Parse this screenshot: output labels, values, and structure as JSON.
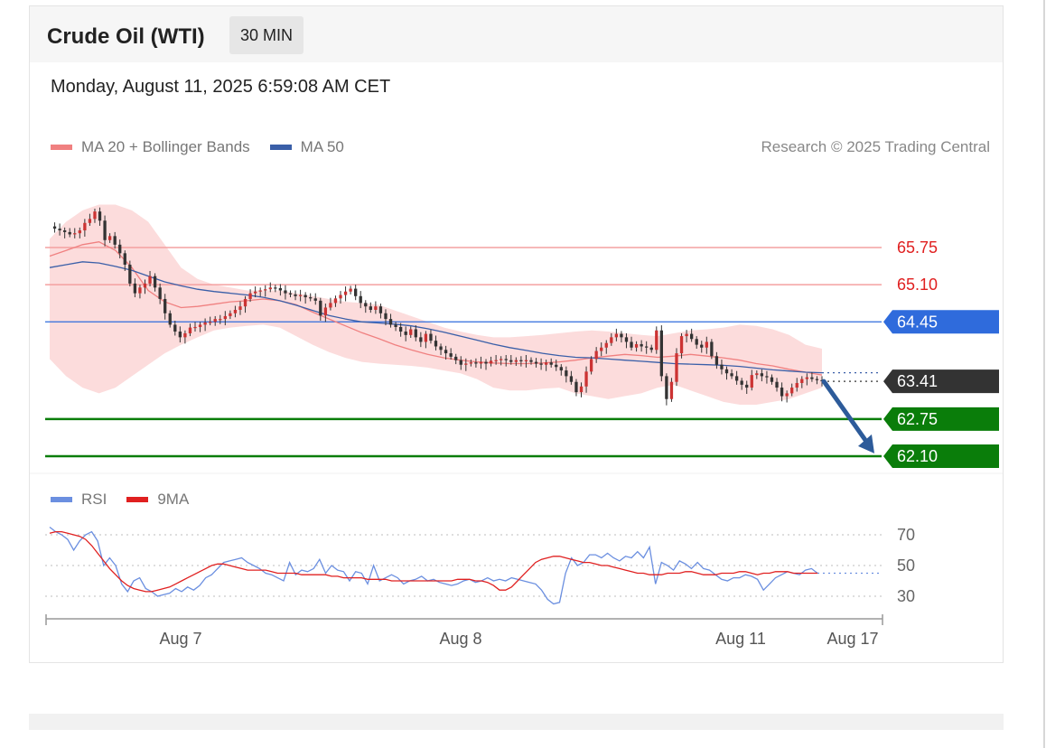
{
  "header": {
    "title": "Crude Oil (WTI)",
    "timeframe": "30 MIN",
    "timestamp": "Monday, August 11, 2025 6:59:08 AM CET"
  },
  "price_legend": {
    "items": [
      {
        "label": "MA 20 + Bollinger Bands",
        "color": "#f08080"
      },
      {
        "label": "MA 50",
        "color": "#3a5fa8"
      }
    ],
    "copyright": "Research © 2025 Trading Central"
  },
  "rsi_legend": {
    "items": [
      {
        "label": "RSI",
        "color": "#6b8fe0"
      },
      {
        "label": "9MA",
        "color": "#e02020"
      }
    ]
  },
  "colors": {
    "resistance": "#f4a0a0",
    "resistance_text": "#e02020",
    "pivot": "#2f6bdc",
    "current": "#333333",
    "support": "#0a7d0a",
    "candle_up": "#cc3333",
    "candle_down": "#333333",
    "arrow": "#2d5b9a"
  },
  "chart_data": [
    {
      "type": "candlestick",
      "y_range": [
        61.95,
        66.7
      ],
      "x_range": [
        0,
        100
      ],
      "levels": [
        {
          "kind": "resistance",
          "value": 65.75,
          "label": "65.75"
        },
        {
          "kind": "resistance",
          "value": 65.1,
          "label": "65.10"
        },
        {
          "kind": "pivot",
          "value": 64.45,
          "label": "64.45"
        },
        {
          "kind": "current",
          "value": 63.41,
          "label": "63.41"
        },
        {
          "kind": "support",
          "value": 62.75,
          "label": "62.75"
        },
        {
          "kind": "support",
          "value": 62.1,
          "label": "62.10"
        }
      ],
      "close": [
        66.12,
        66.08,
        66.05,
        66.02,
        65.98,
        66.0,
        66.05,
        66.18,
        66.25,
        66.38,
        66.22,
        65.88,
        65.95,
        65.8,
        65.65,
        65.45,
        65.12,
        64.95,
        65.05,
        65.12,
        65.25,
        65.05,
        64.85,
        64.6,
        64.4,
        64.28,
        64.18,
        64.25,
        64.35,
        64.36,
        64.4,
        64.44,
        64.45,
        64.5,
        64.5,
        64.55,
        64.6,
        64.66,
        64.72,
        64.85,
        64.95,
        64.98,
        65.0,
        65.02,
        65.05,
        65.04,
        65.0,
        64.95,
        64.93,
        64.9,
        64.92,
        64.88,
        64.86,
        64.82,
        64.56,
        64.7,
        64.78,
        64.86,
        64.92,
        64.98,
        65.03,
        64.9,
        64.78,
        64.72,
        64.66,
        64.72,
        64.6,
        64.5,
        64.4,
        64.36,
        64.28,
        64.22,
        64.32,
        64.18,
        64.1,
        64.24,
        64.12,
        64.02,
        63.96,
        63.9,
        63.84,
        63.78,
        63.7,
        63.72,
        63.74,
        63.72,
        63.75,
        63.72,
        63.77,
        63.78,
        63.8,
        63.78,
        63.75,
        63.78,
        63.76,
        63.78,
        63.75,
        63.72,
        63.7,
        63.74,
        63.7,
        63.66,
        63.6,
        63.5,
        63.4,
        63.22,
        63.32,
        63.58,
        63.8,
        63.94,
        64.0,
        64.08,
        64.18,
        64.24,
        64.18,
        64.1,
        64.0,
        64.06,
        64.02,
        64.0,
        63.96,
        64.3,
        63.5,
        63.1,
        63.4,
        63.9,
        64.2,
        64.24,
        64.15,
        64.05,
        64.0,
        64.1,
        63.85,
        63.7,
        63.62,
        63.55,
        63.5,
        63.42,
        63.35,
        63.3,
        63.52,
        63.55,
        63.5,
        63.48,
        63.4,
        63.3,
        63.15,
        63.2,
        63.3,
        63.38,
        63.45,
        63.48,
        63.45,
        63.43,
        63.41
      ],
      "bollinger": {
        "upper": [
          65.9,
          66.2,
          66.4,
          66.5,
          66.5,
          66.4,
          66.2,
          65.8,
          65.4,
          65.2,
          65.1,
          65.05,
          65.0,
          65.0,
          65.0,
          64.95,
          64.9,
          64.85,
          64.8,
          64.78,
          64.75,
          64.65,
          64.55,
          64.45,
          64.35,
          64.28,
          64.22,
          64.18,
          64.18,
          64.2,
          64.22,
          64.25,
          64.28,
          64.3,
          64.28,
          64.25,
          64.22,
          64.2,
          64.25,
          64.3,
          64.32,
          64.35,
          64.4,
          64.38,
          64.32,
          64.22,
          64.05,
          63.98
        ],
        "lower": [
          63.8,
          63.5,
          63.3,
          63.2,
          63.3,
          63.5,
          63.7,
          63.9,
          64.05,
          64.18,
          64.3,
          64.35,
          64.38,
          64.4,
          64.35,
          64.2,
          64.05,
          63.92,
          63.82,
          63.75,
          63.72,
          63.7,
          63.68,
          63.65,
          63.6,
          63.55,
          63.45,
          63.3,
          63.25,
          63.25,
          63.28,
          63.3,
          63.2,
          63.15,
          63.1,
          63.15,
          63.2,
          63.3,
          63.35,
          63.25,
          63.15,
          63.05,
          63.0,
          63.0,
          63.05,
          63.1,
          63.2,
          63.3
        ],
        "ma20": [
          65.6,
          65.7,
          65.8,
          65.85,
          65.7,
          65.4,
          65.0,
          64.8,
          64.7,
          64.72,
          64.76,
          64.8,
          64.82,
          64.85,
          64.82,
          64.75,
          64.62,
          64.5,
          64.38,
          64.26,
          64.16,
          64.05,
          63.96,
          63.88,
          63.82,
          63.78,
          63.75,
          63.73,
          63.72,
          63.72,
          63.73,
          63.75,
          63.78,
          63.82,
          63.85,
          63.88,
          63.86,
          63.83,
          63.85,
          63.88,
          63.85,
          63.82,
          63.78,
          63.72,
          63.68,
          63.62,
          63.57,
          63.52
        ]
      },
      "ma50": [
        65.4,
        65.45,
        65.5,
        65.48,
        65.42,
        65.35,
        65.25,
        65.15,
        65.08,
        65.02,
        64.98,
        64.95,
        64.92,
        64.88,
        64.82,
        64.74,
        64.65,
        64.56,
        64.5,
        64.45,
        64.43,
        64.41,
        64.38,
        64.33,
        64.27,
        64.2,
        64.13,
        64.06,
        64.0,
        63.95,
        63.9,
        63.86,
        63.83,
        63.82,
        63.8,
        63.78,
        63.76,
        63.74,
        63.72,
        63.71,
        63.7,
        63.69,
        63.67,
        63.64,
        63.61,
        63.59,
        63.57,
        63.56
      ],
      "forecast_arrow": {
        "from": 63.41,
        "to": 62.15
      }
    },
    {
      "type": "line",
      "title": "",
      "y_range": [
        20,
        78
      ],
      "levels": [
        {
          "value": 70,
          "label": "70"
        },
        {
          "value": 50,
          "label": "50"
        },
        {
          "value": 30,
          "label": "30"
        }
      ],
      "x_ticks": [
        "Aug 7",
        "Aug 8",
        "Aug 11",
        "Aug 17"
      ],
      "series": [
        {
          "name": "RSI",
          "values": [
            75,
            72,
            70,
            67,
            60,
            66,
            70,
            72,
            66,
            50,
            55,
            50,
            38,
            33,
            40,
            42,
            35,
            33,
            30,
            31,
            32,
            35,
            33,
            36,
            34,
            37,
            42,
            44,
            48,
            52,
            53,
            54,
            55,
            52,
            50,
            48,
            45,
            44,
            42,
            40,
            52,
            44,
            47,
            46,
            48,
            54,
            45,
            50,
            47,
            46,
            40,
            46,
            45,
            38,
            50,
            40,
            42,
            44,
            42,
            38,
            40,
            41,
            43,
            40,
            41,
            39,
            38,
            37,
            38,
            40,
            41,
            39,
            40,
            42,
            40,
            41,
            40,
            42,
            41,
            40,
            39,
            38,
            34,
            28,
            25,
            26,
            45,
            55,
            50,
            52,
            57,
            57,
            55,
            58,
            55,
            53,
            56,
            55,
            59,
            55,
            62,
            38,
            52,
            50,
            47,
            53,
            51,
            48,
            52,
            48,
            47,
            44,
            41,
            40,
            42,
            42,
            44,
            43,
            41,
            34,
            38,
            42,
            44,
            46,
            45,
            44,
            47,
            48,
            45
          ],
          "color": "#6b8fe0"
        },
        {
          "name": "9MA",
          "values": [
            71,
            72,
            72,
            71,
            70,
            69,
            67,
            63,
            58,
            53,
            48,
            44,
            40,
            37,
            35,
            34,
            33,
            33,
            34,
            35,
            36,
            38,
            40,
            42,
            44,
            46,
            48,
            50,
            51,
            51,
            50,
            49,
            48,
            47,
            47,
            47,
            47,
            46,
            45,
            45,
            45,
            45,
            44,
            44,
            44,
            44,
            44,
            43,
            43,
            42,
            42,
            42,
            42,
            41,
            41,
            41,
            41,
            40,
            40,
            40,
            40,
            40,
            40,
            40,
            40,
            40,
            40,
            40,
            41,
            41,
            41,
            40,
            40,
            39,
            37,
            34,
            34,
            36,
            40,
            44,
            48,
            52,
            54,
            55,
            56,
            56,
            55,
            54,
            53,
            52,
            52,
            51,
            50,
            50,
            49,
            48,
            47,
            46,
            45,
            45,
            44,
            44,
            44,
            45,
            45,
            45,
            46,
            46,
            45,
            44,
            44,
            44,
            45,
            45,
            45,
            46,
            46,
            45,
            44,
            45,
            45,
            46,
            46,
            46,
            45,
            45,
            45,
            45,
            45
          ],
          "color": "#e02020"
        }
      ]
    }
  ]
}
